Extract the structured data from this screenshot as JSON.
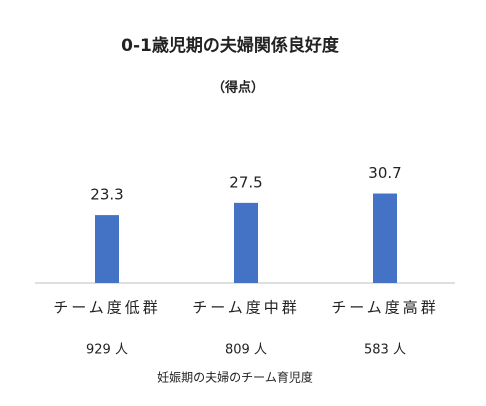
{
  "chart_data": {
    "type": "bar",
    "title": "0-1歳児期の夫婦関係良好度",
    "subtitle": "（得点）",
    "categories": [
      "チーム度低群",
      "チーム度中群",
      "チーム度高群"
    ],
    "counts": [
      "929 人",
      "809 人",
      "583 人"
    ],
    "values": [
      23.3,
      27.5,
      30.7
    ],
    "color": "#4472c4",
    "ylim": [
      0,
      35
    ],
    "x_label": "妊娠期の夫婦のチーム育児度"
  }
}
